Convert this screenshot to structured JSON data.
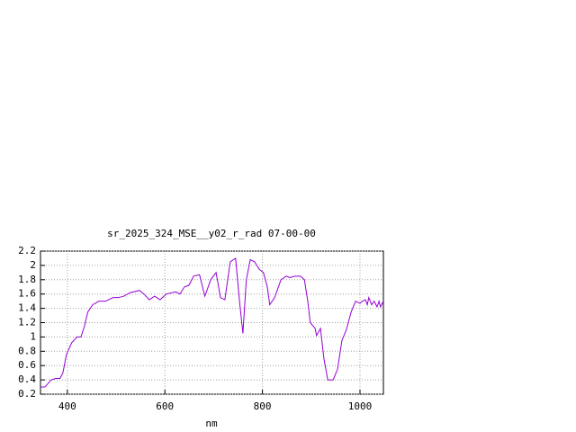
{
  "chart_data": {
    "type": "line",
    "title": "sr_2025_324_MSE__y02_r_rad 07-00-00",
    "x_label": "nm",
    "x": [
      345,
      354,
      367,
      376,
      385,
      391,
      398,
      409,
      420,
      428,
      435,
      442,
      452,
      465,
      479,
      487,
      494,
      505,
      516,
      529,
      548,
      557,
      568,
      579,
      590,
      603,
      622,
      631,
      640,
      649,
      659,
      671,
      682,
      694,
      705,
      714,
      723,
      734,
      745,
      753,
      760,
      767,
      775,
      784,
      793,
      802,
      810,
      815,
      825,
      838,
      849,
      856,
      867,
      878,
      886,
      893,
      898,
      908,
      911,
      919,
      926,
      934,
      945,
      954,
      963,
      972,
      982,
      991,
      1000,
      1005,
      1011,
      1015,
      1018,
      1024,
      1029,
      1035,
      1039,
      1042,
      1048
    ],
    "values": [
      0.3,
      0.3,
      0.4,
      0.42,
      0.42,
      0.5,
      0.75,
      0.92,
      1.0,
      1.0,
      1.15,
      1.35,
      1.45,
      1.5,
      1.5,
      1.53,
      1.55,
      1.55,
      1.57,
      1.62,
      1.65,
      1.6,
      1.52,
      1.57,
      1.52,
      1.6,
      1.63,
      1.6,
      1.7,
      1.72,
      1.85,
      1.87,
      1.57,
      1.8,
      1.9,
      1.55,
      1.52,
      2.05,
      2.1,
      1.5,
      1.05,
      1.8,
      2.08,
      2.05,
      1.95,
      1.9,
      1.7,
      1.45,
      1.55,
      1.8,
      1.85,
      1.83,
      1.85,
      1.85,
      1.8,
      1.5,
      1.2,
      1.12,
      1.02,
      1.12,
      0.7,
      0.4,
      0.4,
      0.55,
      0.95,
      1.1,
      1.35,
      1.5,
      1.47,
      1.5,
      1.52,
      1.45,
      1.55,
      1.45,
      1.5,
      1.42,
      1.5,
      1.42,
      1.5
    ],
    "color": "#9400d3",
    "xlim": [
      345,
      1048
    ],
    "xticks": [
      400,
      600,
      800,
      1000
    ],
    "ylim": [
      0.2,
      2.2
    ],
    "yticks": [
      0.2,
      0.4,
      0.6,
      0.8,
      1,
      1.2,
      1.4,
      1.6,
      1.8,
      2,
      2.2
    ],
    "grid": true
  }
}
